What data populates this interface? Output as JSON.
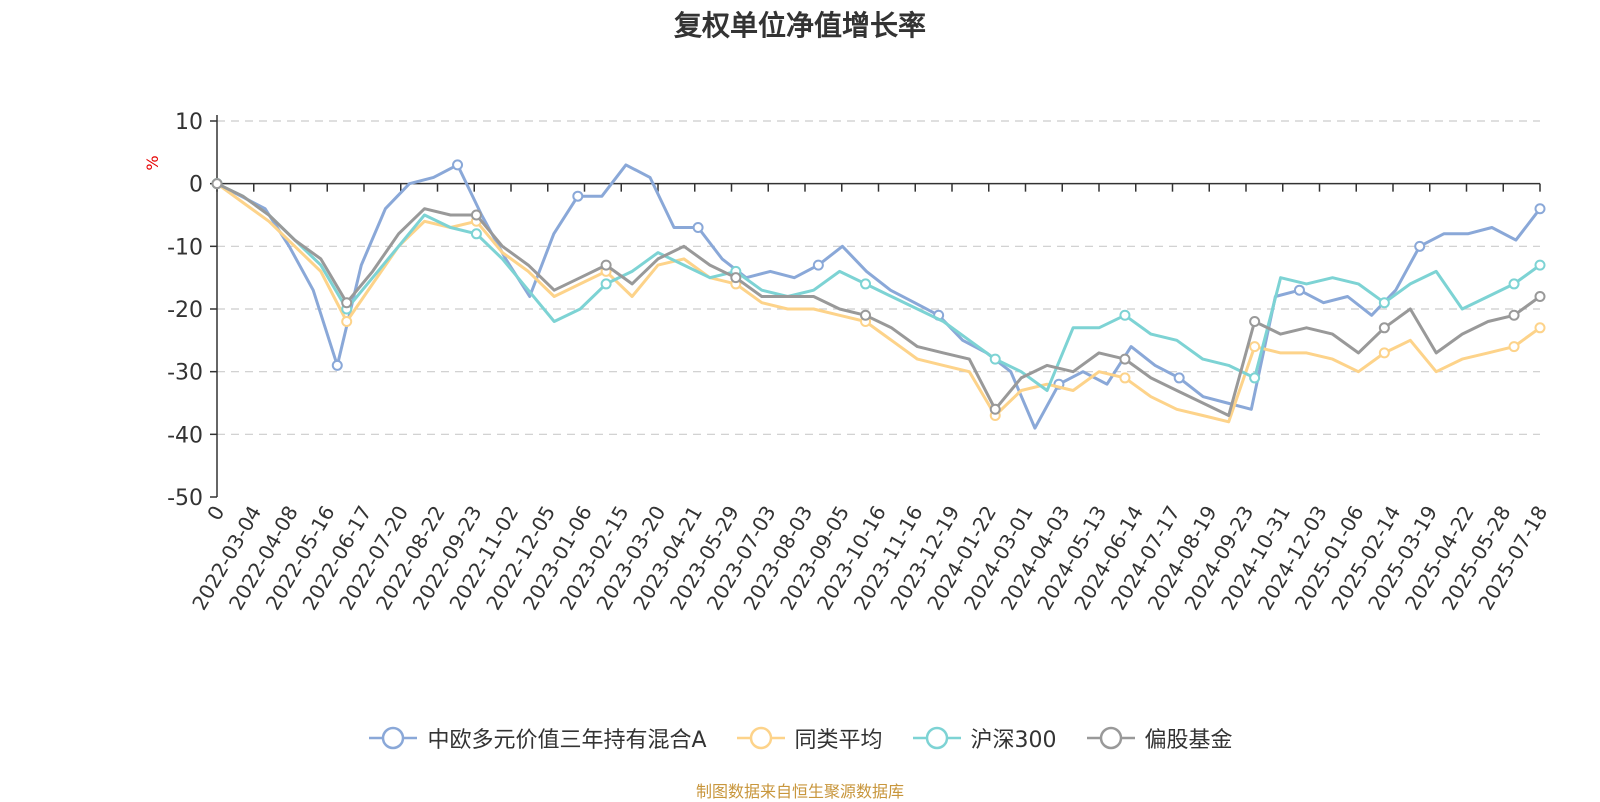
{
  "chart_data": {
    "type": "line",
    "title": "复权单位净值增长率",
    "ylabel": "%",
    "ylim": [
      -50,
      10
    ],
    "yticks": [
      10,
      0,
      -10,
      -20,
      -30,
      -40,
      -50
    ],
    "x_tick_labels": [
      "0",
      "2022-03-04",
      "2022-04-08",
      "2022-05-16",
      "2022-06-17",
      "2022-07-20",
      "2022-08-22",
      "2022-09-23",
      "2022-11-02",
      "2022-12-05",
      "2023-01-06",
      "2023-02-15",
      "2023-03-20",
      "2023-04-21",
      "2023-05-29",
      "2023-07-03",
      "2023-08-03",
      "2023-09-05",
      "2023-10-16",
      "2023-11-16",
      "2023-12-19",
      "2024-01-22",
      "2024-03-01",
      "2024-04-03",
      "2024-05-13",
      "2024-06-14",
      "2024-07-17",
      "2024-08-19",
      "2024-09-23",
      "2024-10-31",
      "2024-12-03",
      "2025-01-06",
      "2025-02-14",
      "2025-03-19",
      "2025-04-22",
      "2025-05-28",
      "2025-07-18"
    ],
    "grid": true,
    "legend_position": "bottom",
    "series": [
      {
        "name": "中欧多元价值三年持有混合A",
        "color": "#8aa8d8",
        "values": [
          0,
          -2,
          -4,
          -10,
          -17,
          -29,
          -13,
          -4,
          0,
          1,
          3,
          -5,
          -12,
          -18,
          -8,
          -2,
          -2,
          3,
          1,
          -7,
          -7,
          -12,
          -15,
          -14,
          -15,
          -13,
          -10,
          -14,
          -17,
          -19,
          -21,
          -25,
          -27,
          -30,
          -39,
          -32,
          -30,
          -32,
          -26,
          -29,
          -31,
          -34,
          -35,
          -36,
          -18,
          -17,
          -19,
          -18,
          -21,
          -17,
          -10,
          -8,
          -8,
          -7,
          -9,
          -4
        ]
      },
      {
        "name": "同类平均",
        "color": "#fdd38a",
        "values": [
          0,
          -3,
          -6,
          -10,
          -14,
          -22,
          -16,
          -10,
          -6,
          -7,
          -6,
          -11,
          -14,
          -18,
          -16,
          -14,
          -18,
          -13,
          -12,
          -15,
          -16,
          -19,
          -20,
          -20,
          -21,
          -22,
          -25,
          -28,
          -29,
          -30,
          -37,
          -33,
          -32,
          -33,
          -30,
          -31,
          -34,
          -36,
          -37,
          -38,
          -26,
          -27,
          -27,
          -28,
          -30,
          -27,
          -25,
          -30,
          -28,
          -27,
          -26,
          -23
        ]
      },
      {
        "name": "沪深300",
        "color": "#7dd3d4",
        "values": [
          0,
          -2,
          -5,
          -9,
          -13,
          -20,
          -15,
          -10,
          -5,
          -7,
          -8,
          -12,
          -17,
          -22,
          -20,
          -16,
          -14,
          -11,
          -13,
          -15,
          -14,
          -17,
          -18,
          -17,
          -14,
          -16,
          -18,
          -20,
          -22,
          -25,
          -28,
          -30,
          -33,
          -23,
          -23,
          -21,
          -24,
          -25,
          -28,
          -29,
          -31,
          -15,
          -16,
          -15,
          -16,
          -19,
          -16,
          -14,
          -20,
          -18,
          -16,
          -13
        ]
      },
      {
        "name": "偏股基金",
        "color": "#999999",
        "values": [
          0,
          -2,
          -5,
          -9,
          -12,
          -19,
          -14,
          -8,
          -4,
          -5,
          -5,
          -10,
          -13,
          -17,
          -15,
          -13,
          -16,
          -12,
          -10,
          -13,
          -15,
          -18,
          -18,
          -18,
          -20,
          -21,
          -23,
          -26,
          -27,
          -28,
          -36,
          -31,
          -29,
          -30,
          -27,
          -28,
          -31,
          -33,
          -35,
          -37,
          -22,
          -24,
          -23,
          -24,
          -27,
          -23,
          -20,
          -27,
          -24,
          -22,
          -21,
          -18
        ]
      }
    ]
  },
  "source_note": "制图数据来自恒生聚源数据库"
}
